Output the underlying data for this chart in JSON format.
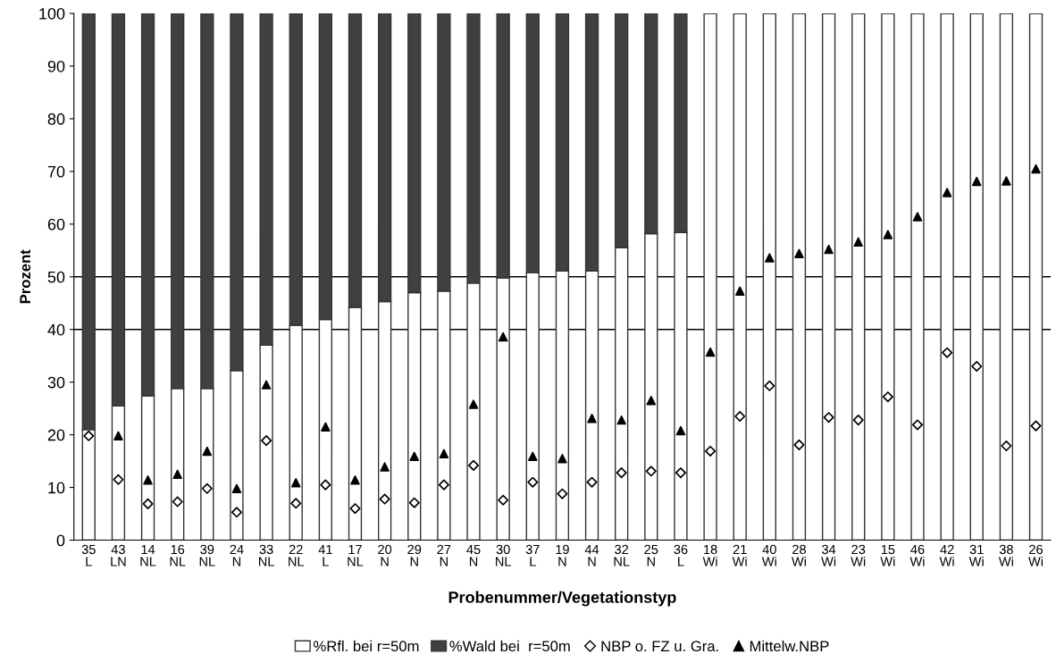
{
  "chart_data": {
    "type": "bar",
    "stacked": true,
    "xlabel": "Probenummer/Vegetationstyp",
    "ylabel": "Prozent",
    "ylim": [
      0,
      100
    ],
    "yticks": [
      0,
      10,
      20,
      30,
      40,
      50,
      60,
      70,
      80,
      90,
      100
    ],
    "grid": false,
    "legend": "bottom",
    "categories": [
      "35\nL",
      "43\nLN",
      "14\nNL",
      "16\nNL",
      "39\nNL",
      "24\nN",
      "33\nNL",
      "22\nNL",
      "41\nL",
      "17\nNL",
      "20\nN",
      "29\nN",
      "27\nN",
      "45\nN",
      "30\nNL",
      "37\nL",
      "19\nN",
      "44\nN",
      "32\nNL",
      "25\nN",
      "36\nL",
      "18\nWi",
      "21\nWi",
      "40\nWi",
      "28\nWi",
      "34\nWi",
      "23\nWi",
      "15\nWi",
      "46\nWi",
      "42\nWi",
      "31\nWi",
      "38\nWi",
      "26\nWi"
    ],
    "series": [
      {
        "name": "%Rfl. bei r=50m",
        "color": "#ffffff",
        "values": [
          21,
          25.5,
          27.4,
          28.8,
          28.8,
          32.2,
          37,
          40.8,
          41.9,
          44.2,
          45.3,
          47,
          47.3,
          48.8,
          49.8,
          50.8,
          51.1,
          51.1,
          55.5,
          58.2,
          58.4,
          100,
          100,
          100,
          100,
          100,
          100,
          100,
          100,
          100,
          100,
          100,
          100
        ]
      },
      {
        "name": "%Wald bei  r=50m",
        "color": "#404040",
        "values": [
          79,
          74.5,
          72.6,
          71.2,
          71.2,
          67.8,
          63,
          59.2,
          58.1,
          55.8,
          54.7,
          53,
          52.7,
          51.2,
          50.2,
          49.2,
          48.9,
          48.9,
          44.5,
          41.8,
          41.6,
          0,
          0,
          0,
          0,
          0,
          0,
          0,
          0,
          0,
          0,
          0,
          0
        ]
      },
      {
        "name": "NBP o. FZ u. Gra.",
        "type": "scatter",
        "marker": "diamond",
        "color": "#ffffff",
        "values": [
          19.8,
          11.5,
          6.9,
          7.3,
          9.8,
          5.3,
          18.9,
          7,
          10.5,
          6,
          7.8,
          7.1,
          10.5,
          14.2,
          7.6,
          11,
          8.8,
          11,
          12.8,
          13.1,
          12.8,
          16.9,
          23.5,
          29.3,
          18.1,
          23.3,
          22.8,
          27.2,
          21.9,
          35.6,
          33,
          17.9,
          21.7
        ]
      },
      {
        "name": "Mittelw.NBP",
        "type": "scatter",
        "marker": "triangle",
        "color": "#000000",
        "values": [
          null,
          19.8,
          11.4,
          12.5,
          16.9,
          9.8,
          29.5,
          10.9,
          21.5,
          11.4,
          13.9,
          15.9,
          16.4,
          25.8,
          38.6,
          15.9,
          15.5,
          23.1,
          22.8,
          26.5,
          20.8,
          35.7,
          47.3,
          53.6,
          54.4,
          55.2,
          56.6,
          58,
          61.4,
          66,
          68.1,
          68.2,
          70.5
        ]
      }
    ],
    "ref_lines": [
      {
        "axis": "y",
        "value": 40,
        "color": "#000000"
      },
      {
        "axis": "y",
        "value": 50,
        "color": "#000000"
      }
    ]
  }
}
